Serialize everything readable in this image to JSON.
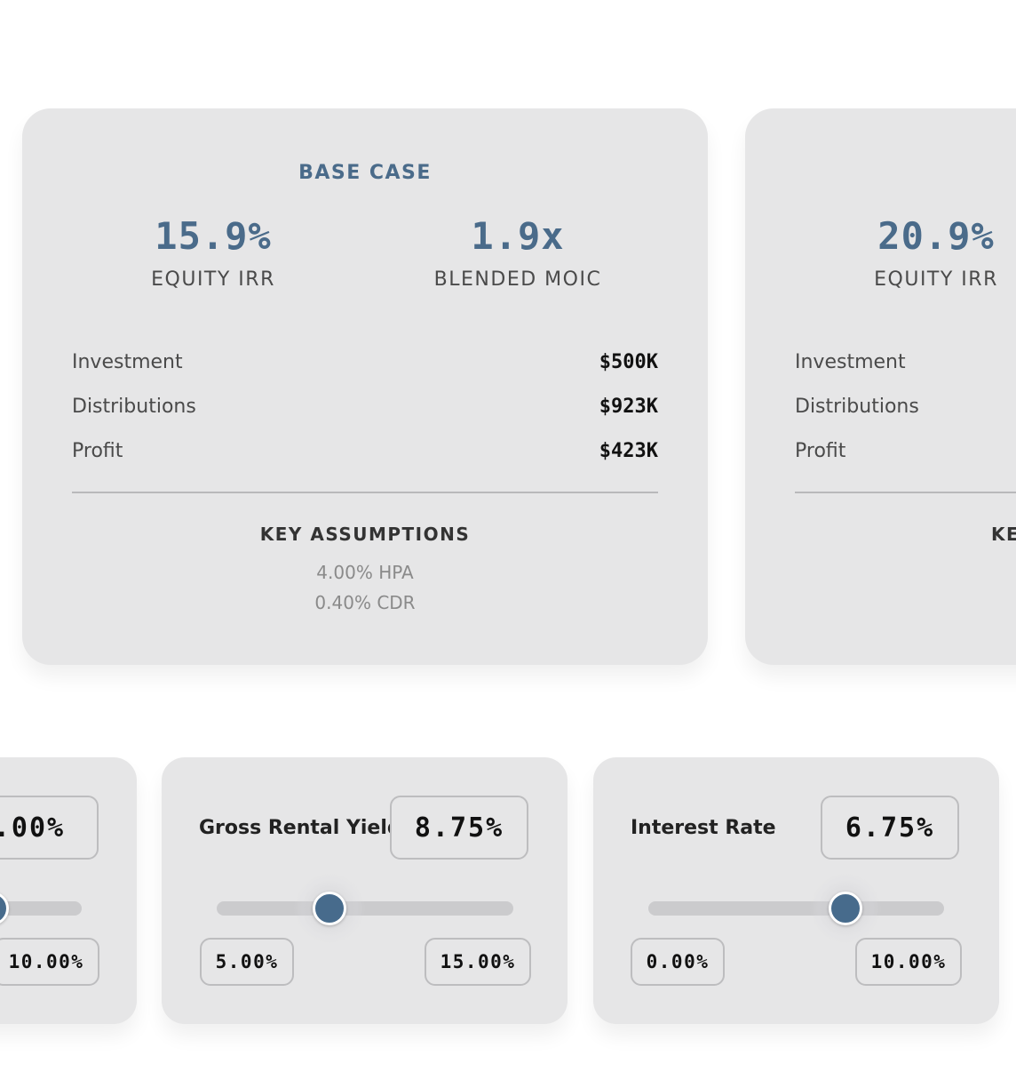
{
  "scenarios": [
    {
      "title": "BASE CASE",
      "metrics": [
        {
          "value": "15.9%",
          "label": "EQUITY IRR"
        },
        {
          "value": "1.9x",
          "label": "BLENDED MOIC"
        }
      ],
      "rows": [
        {
          "label": "Investment",
          "value": "$500K"
        },
        {
          "label": "Distributions",
          "value": "$923K"
        },
        {
          "label": "Profit",
          "value": "$423K"
        }
      ],
      "assumptions_title": "KEY ASSUMPTIONS",
      "assumptions": [
        "4.00% HPA",
        "0.40% CDR"
      ]
    },
    {
      "title": "",
      "metrics": [
        {
          "value": "20.9%",
          "label": "EQUITY IRR"
        }
      ],
      "rows": [
        {
          "label": "Investment"
        },
        {
          "label": "Distributions"
        },
        {
          "label": "Profit"
        }
      ],
      "assumptions_title": "KE"
    }
  ],
  "sliders": [
    {
      "label": "",
      "value": ".00%",
      "min_label": "",
      "max_label": "10.00%",
      "position_fraction": 0.0
    },
    {
      "label": "Gross Rental Yield",
      "value": "8.75%",
      "min_label": "5.00%",
      "max_label": "15.00%",
      "min": 5.0,
      "max": 15.0,
      "current": 8.75
    },
    {
      "label": "Interest Rate",
      "value": "6.75%",
      "min_label": "0.00%",
      "max_label": "10.00%",
      "min": 0.0,
      "max": 10.0,
      "current": 6.75
    }
  ],
  "colors": {
    "accent": "#4a6b8a",
    "card_bg": "#e6e6e7",
    "thumb": "#476b8c"
  }
}
